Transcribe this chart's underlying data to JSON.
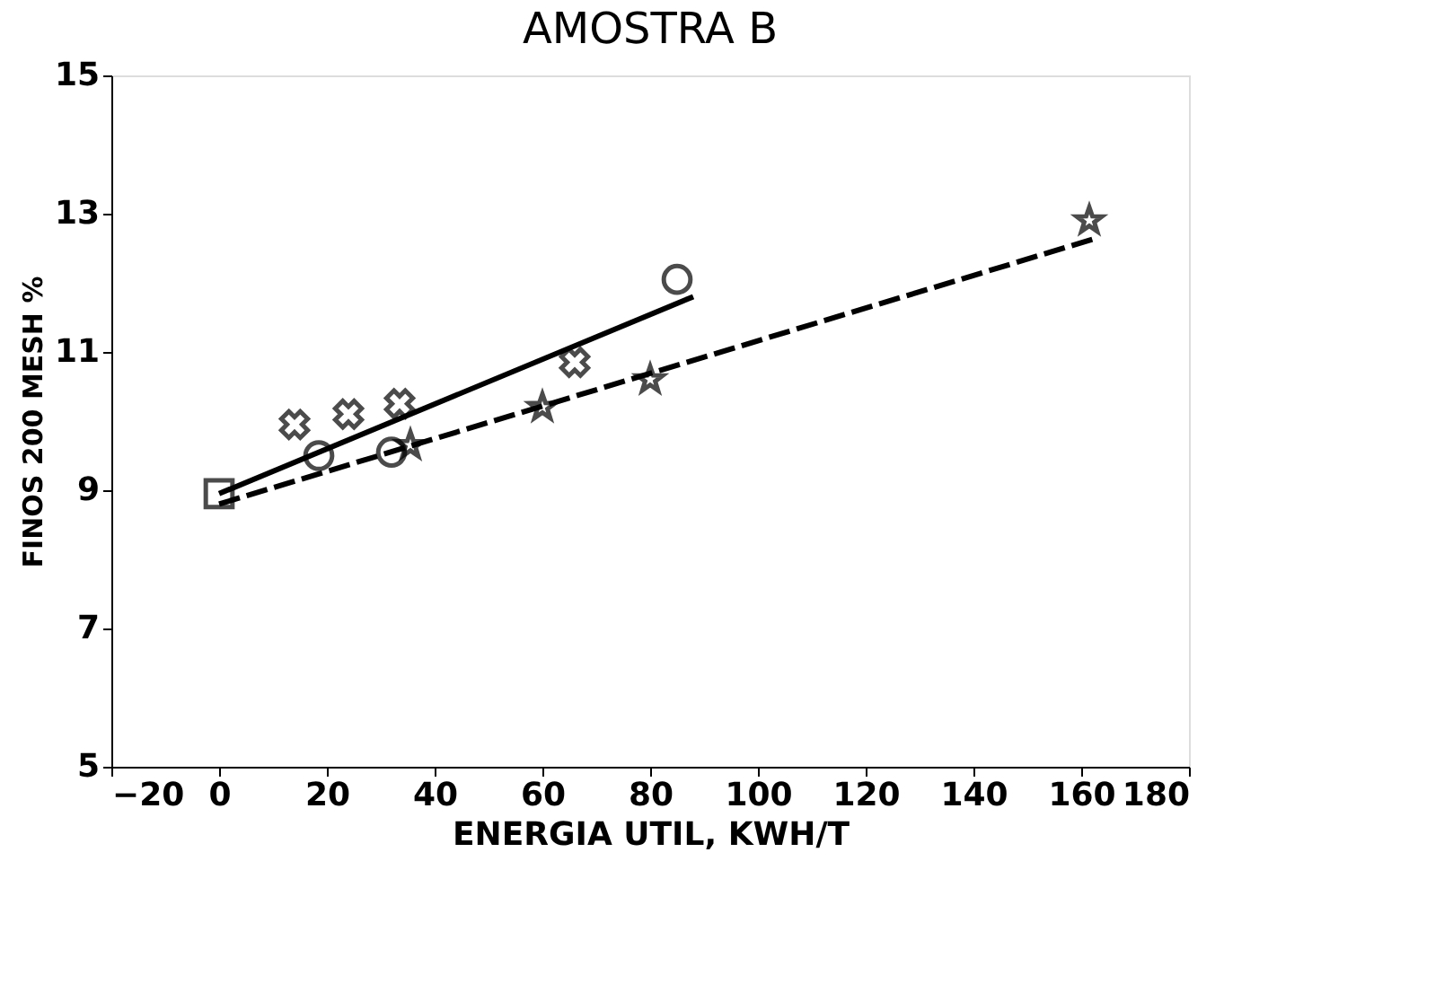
{
  "chart_data": {
    "type": "scatter",
    "title": "AMOSTRA B",
    "xlabel": "ENERGIA UTIL, KWH/T",
    "ylabel": "FINOS 200 MESH %",
    "xlim": [
      -20,
      180
    ],
    "xticks": [
      -20,
      0,
      20,
      40,
      60,
      80,
      100,
      120,
      140,
      160,
      180
    ],
    "ylim": [
      5,
      15
    ],
    "yticks": [
      5,
      7,
      9,
      11,
      13,
      15
    ],
    "grid": false,
    "series": [
      {
        "marker": "cross",
        "color": "#000000",
        "x": [
          14,
          24,
          33.5,
          66
        ],
        "values": [
          9.95,
          10.1,
          10.25,
          10.85
        ]
      },
      {
        "marker": "circle",
        "color": "#000000",
        "x": [
          18.5,
          32,
          85
        ],
        "values": [
          9.5,
          9.55,
          12.05
        ]
      },
      {
        "marker": "star",
        "color": "#000000",
        "x": [
          35.5,
          60,
          80,
          161.5
        ],
        "values": [
          9.65,
          10.2,
          10.6,
          12.9
        ]
      },
      {
        "marker": "square",
        "color": "#000000",
        "x": [
          0
        ],
        "values": [
          8.95
        ]
      },
      {
        "type": "line",
        "line_style": "solid",
        "color": "#000000",
        "x": [
          0,
          88
        ],
        "values": [
          8.95,
          11.8
        ]
      },
      {
        "type": "line",
        "line_style": "dashed",
        "color": "#000000",
        "x": [
          0,
          163
        ],
        "values": [
          8.8,
          12.65
        ]
      }
    ]
  }
}
